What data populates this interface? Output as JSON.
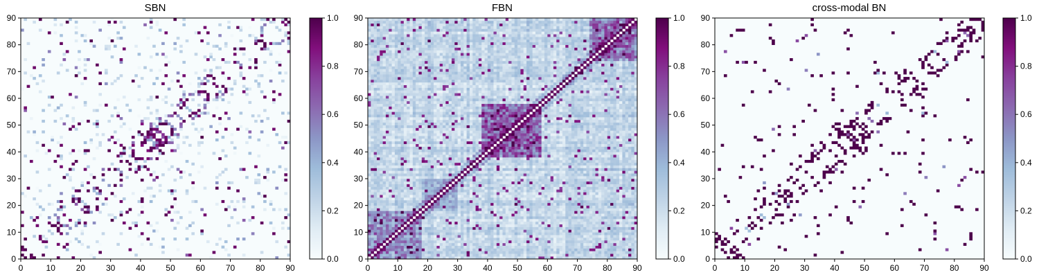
{
  "chart_data": [
    {
      "type": "heatmap",
      "title": "SBN",
      "grid_size": 90,
      "xlim": [
        0,
        90
      ],
      "ylim": [
        0,
        90
      ],
      "x_ticks": [
        "0",
        "10",
        "20",
        "30",
        "40",
        "50",
        "60",
        "70",
        "80",
        "90"
      ],
      "y_ticks": [
        "0",
        "10",
        "20",
        "30",
        "40",
        "50",
        "60",
        "70",
        "80",
        "90"
      ],
      "colorbar": {
        "range": [
          0.0,
          1.0
        ],
        "ticks": [
          "0.0",
          "0.2",
          "0.4",
          "0.6",
          "0.8",
          "1.0"
        ],
        "colormap": "BuPu"
      },
      "density": "sparse",
      "symmetric": true,
      "structure": "mostly near-zero values with scattered connections along the diagonal and a few off-diagonal clusters; one-cell values"
    },
    {
      "type": "heatmap",
      "title": "FBN",
      "grid_size": 90,
      "xlim": [
        0,
        90
      ],
      "ylim": [
        0,
        90
      ],
      "x_ticks": [
        "0",
        "10",
        "20",
        "30",
        "40",
        "50",
        "60",
        "70",
        "80",
        "90"
      ],
      "y_ticks": [
        "0",
        "10",
        "20",
        "30",
        "40",
        "50",
        "60",
        "70",
        "80",
        "90"
      ],
      "colorbar": {
        "range": [
          0.0,
          1.0
        ],
        "ticks": [
          "0.0",
          "0.2",
          "0.4",
          "0.6",
          "0.8",
          "1.0"
        ],
        "colormap": "BuPu"
      },
      "density": "dense",
      "symmetric": true,
      "structure": "dense correlation matrix with strong diagonal and high-value blocks around (40-55, 40-55) and (75-90, 75-90)"
    },
    {
      "type": "heatmap",
      "title": "cross-modal BN",
      "grid_size": 90,
      "xlim": [
        0,
        90
      ],
      "ylim": [
        0,
        90
      ],
      "x_ticks": [
        "0",
        "10",
        "20",
        "30",
        "40",
        "50",
        "60",
        "70",
        "80",
        "90"
      ],
      "y_ticks": [
        "0",
        "10",
        "20",
        "30",
        "40",
        "50",
        "60",
        "70",
        "80",
        "90"
      ],
      "colorbar": {
        "range": [
          0.0,
          1.0
        ],
        "ticks": [
          "0.0",
          "0.2",
          "0.4",
          "0.6",
          "0.8",
          "1.0"
        ],
        "colormap": "BuPu"
      },
      "density": "sparse-binary",
      "symmetric": true,
      "structure": "sparse, mostly saturated single-cell connections resembling SBN pattern"
    }
  ]
}
